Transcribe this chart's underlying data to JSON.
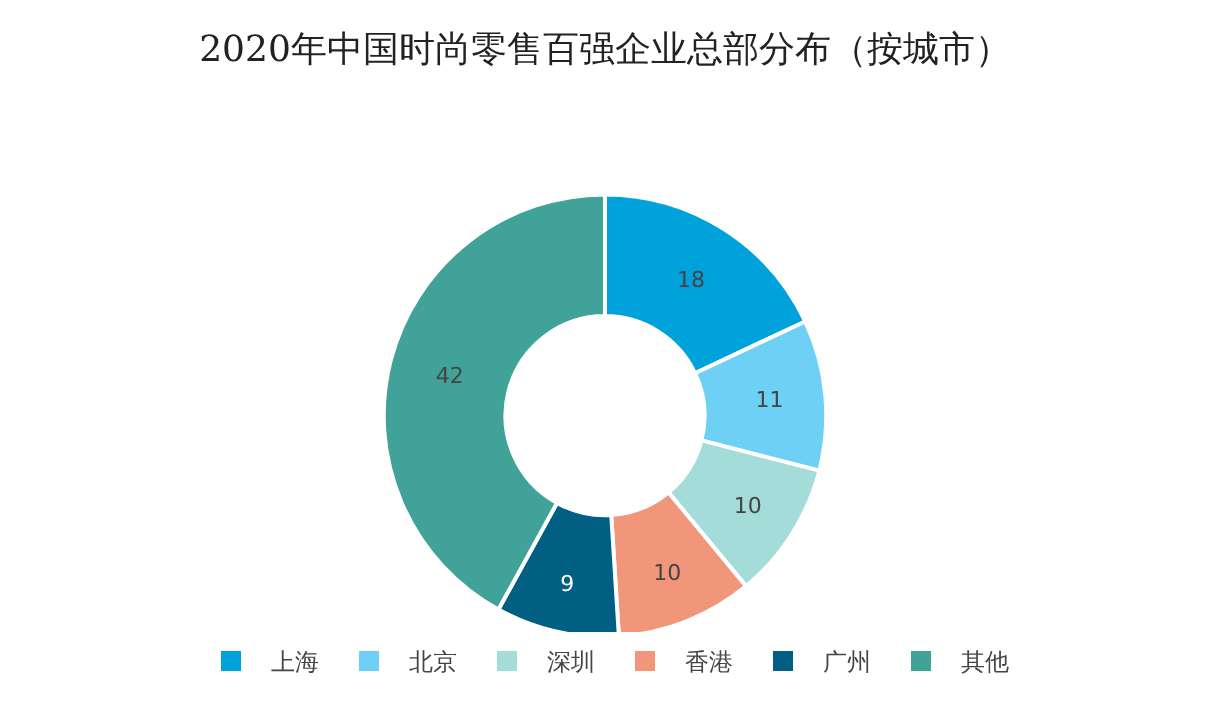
{
  "chart_data": {
    "type": "donut",
    "title": "2020年中国时尚零售百强企业总部分布（按城市）",
    "categories": [
      "上海",
      "北京",
      "深圳",
      "香港",
      "广州",
      "其他"
    ],
    "values": [
      18,
      11,
      10,
      10,
      9,
      42
    ],
    "colors": [
      "#00a2dc",
      "#6fd0f6",
      "#a3dcd8",
      "#f1957b",
      "#005f83",
      "#40a298"
    ],
    "data_labels": true,
    "legend": "bottom"
  }
}
